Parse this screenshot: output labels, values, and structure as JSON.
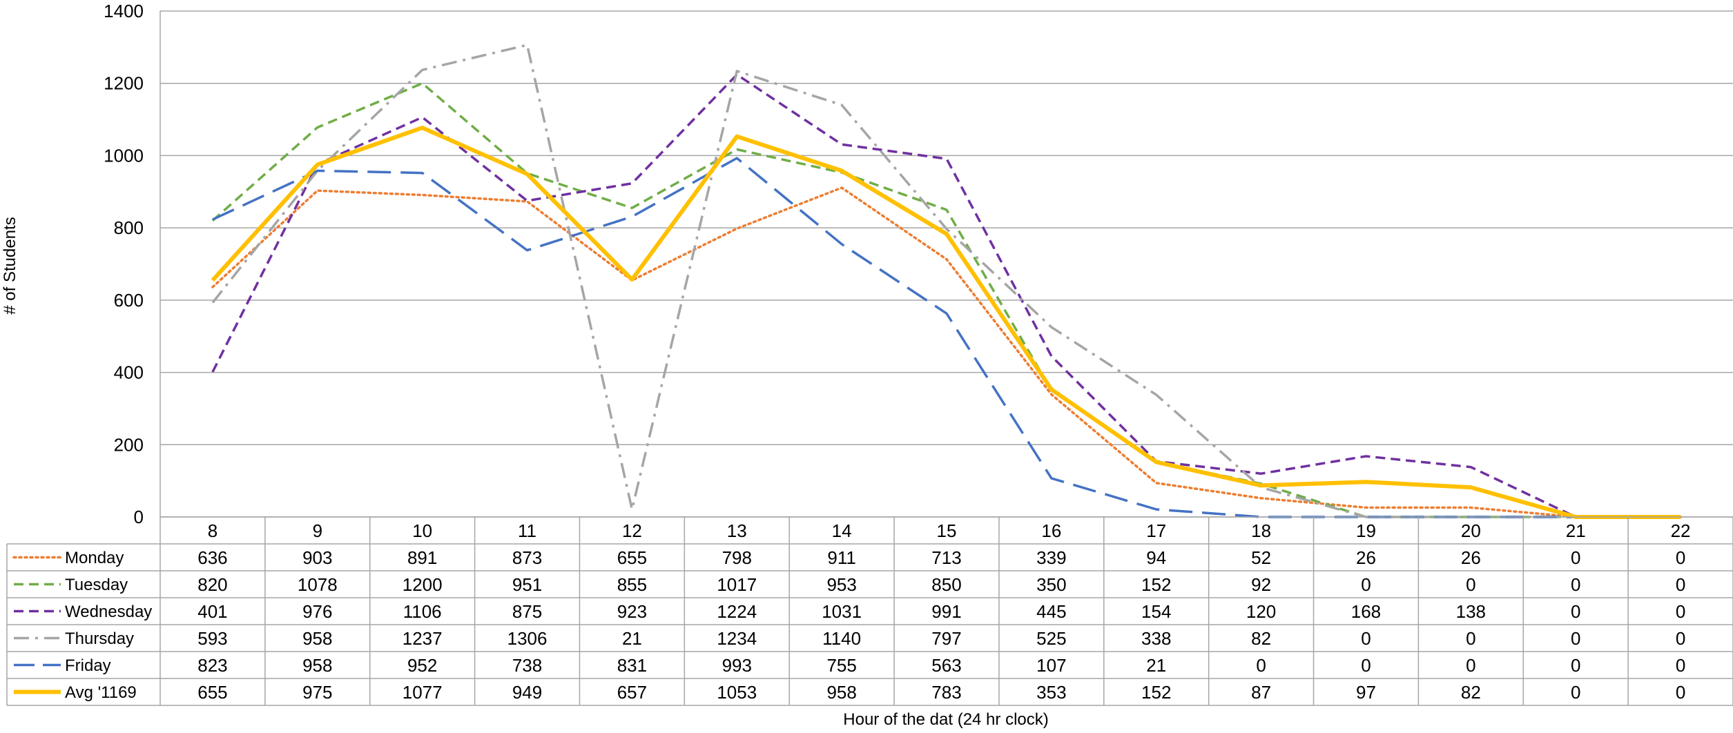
{
  "chart_data": {
    "type": "line",
    "title": "",
    "xlabel": "Hour of the dat (24 hr clock)",
    "ylabel": "# of Students",
    "ylim": [
      0,
      1400
    ],
    "yticks": [
      0,
      200,
      400,
      600,
      800,
      1000,
      1200,
      1400
    ],
    "grid": true,
    "legend": "data-table-left",
    "categories": [
      "8",
      "9",
      "10",
      "11",
      "12",
      "13",
      "14",
      "15",
      "16",
      "17",
      "18",
      "19",
      "20",
      "21",
      "22"
    ],
    "series": [
      {
        "name": "Monday",
        "color": "#ED7D31",
        "dash": "dotted",
        "values": [
          636,
          903,
          891,
          873,
          655,
          798,
          911,
          713,
          339,
          94,
          52,
          26,
          26,
          0,
          0
        ]
      },
      {
        "name": "Tuesday",
        "color": "#70AD47",
        "dash": "dashed",
        "values": [
          820,
          1078,
          1200,
          951,
          855,
          1017,
          953,
          850,
          350,
          152,
          92,
          0,
          0,
          0,
          0
        ]
      },
      {
        "name": "Wednesday",
        "color": "#7030A0",
        "dash": "dashed",
        "values": [
          401,
          976,
          1106,
          875,
          923,
          1224,
          1031,
          991,
          445,
          154,
          120,
          168,
          138,
          0,
          0
        ]
      },
      {
        "name": "Thursday",
        "color": "#A5A5A5",
        "dash": "dash-dot",
        "values": [
          593,
          958,
          1237,
          1306,
          21,
          1234,
          1140,
          797,
          525,
          338,
          82,
          0,
          0,
          0,
          0
        ]
      },
      {
        "name": "Friday",
        "color": "#4472C4",
        "dash": "long-dash",
        "values": [
          823,
          958,
          952,
          738,
          831,
          993,
          755,
          563,
          107,
          21,
          0,
          0,
          0,
          0,
          0
        ]
      },
      {
        "name": "Avg '1169",
        "color": "#FFC000",
        "dash": "solid",
        "values": [
          655,
          975,
          1077,
          949,
          657,
          1053,
          958,
          783,
          353,
          152,
          87,
          97,
          82,
          0,
          0
        ]
      }
    ]
  }
}
